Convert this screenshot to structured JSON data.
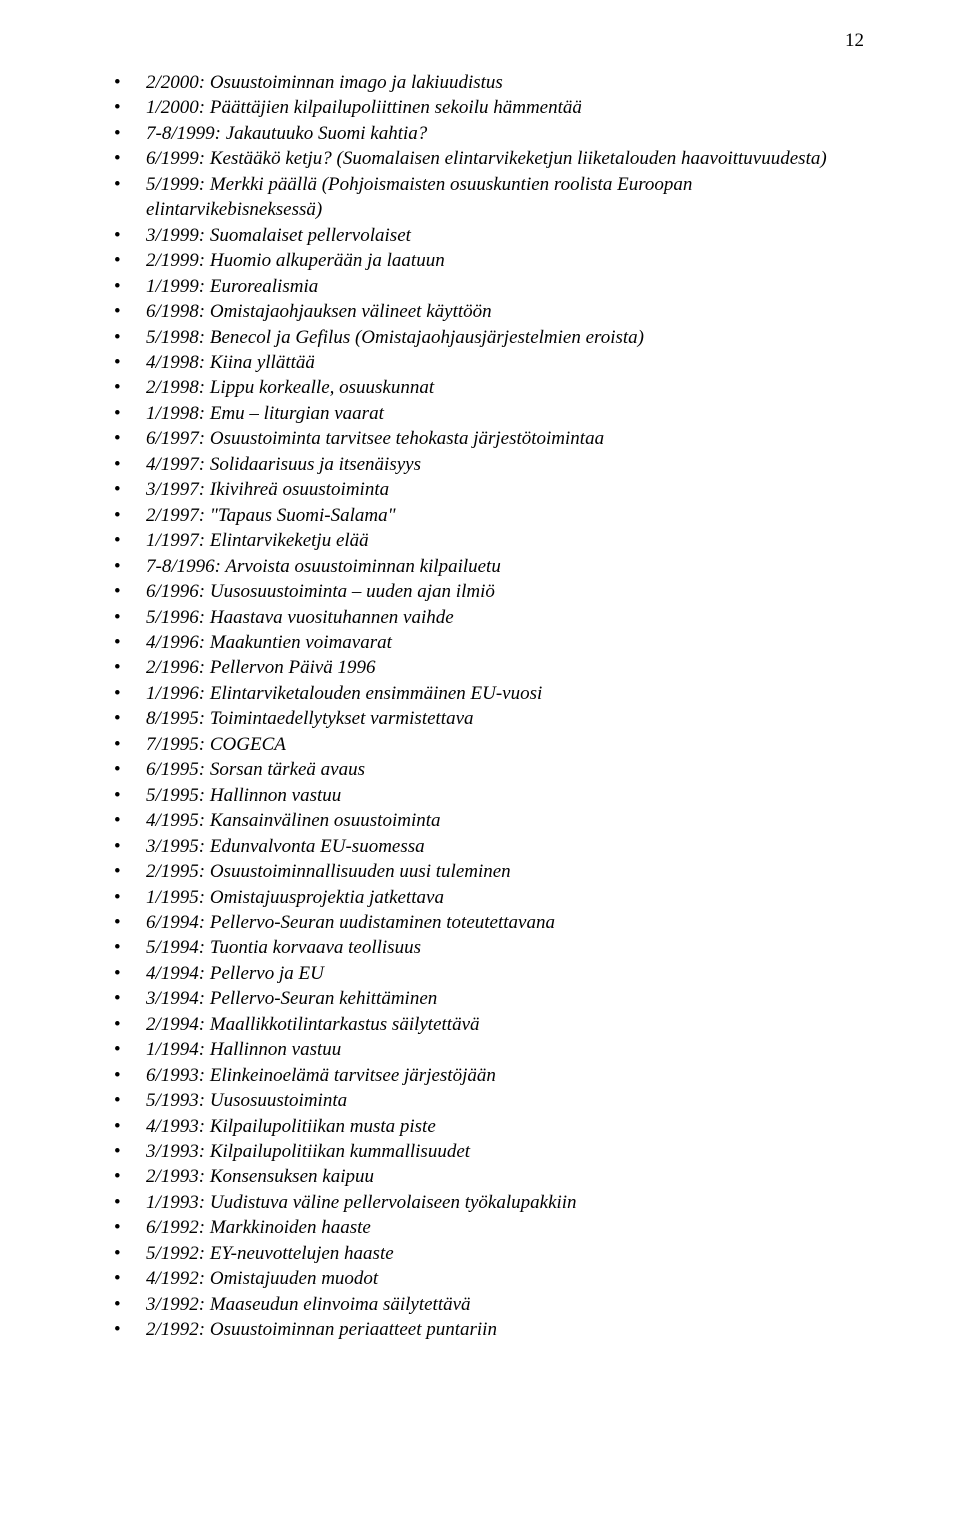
{
  "page_number": "12",
  "entries": [
    {
      "issue": "2/2000",
      "title": "Osuustoiminnan imago ja lakiuudistus"
    },
    {
      "issue": "1/2000",
      "title": "Päättäjien kilpailupoliittinen sekoilu hämmentää"
    },
    {
      "issue": "7-8/1999",
      "title": "Jakautuuko Suomi kahtia?"
    },
    {
      "issue": "6/1999",
      "title": "Kestääkö ketju? (Suomalaisen elintarvikeketjun liiketalouden haavoittuvuudesta)"
    },
    {
      "issue": "5/1999",
      "title": "Merkki päällä (Pohjoismaisten osuuskuntien roolista Euroopan elintarvikebisneksessä)"
    },
    {
      "issue": "3/1999",
      "title": "Suomalaiset pellervolaiset"
    },
    {
      "issue": "2/1999",
      "title": "Huomio alkuperään ja laatuun"
    },
    {
      "issue": "1/1999",
      "title": "Eurorealismia"
    },
    {
      "issue": "6/1998",
      "title": "Omistajaohjauksen välineet käyttöön"
    },
    {
      "issue": "5/1998",
      "title": "Benecol ja Gefilus (Omistajaohjausjärjestelmien eroista)"
    },
    {
      "issue": "4/1998",
      "title": "Kiina yllättää"
    },
    {
      "issue": "2/1998",
      "title": "Lippu korkealle, osuuskunnat"
    },
    {
      "issue": "1/1998",
      "title": "Emu – liturgian vaarat"
    },
    {
      "issue": "6/1997",
      "title": "Osuustoiminta tarvitsee tehokasta järjestötoimintaa"
    },
    {
      "issue": "4/1997",
      "title": "Solidaarisuus ja itsenäisyys"
    },
    {
      "issue": "3/1997",
      "title": "Ikivihreä osuustoiminta"
    },
    {
      "issue": "2/1997",
      "title": "\"Tapaus Suomi-Salama\""
    },
    {
      "issue": "1/1997",
      "title": "Elintarvikeketju elää"
    },
    {
      "issue": "7-8/1996",
      "title": "Arvoista osuustoiminnan kilpailuetu"
    },
    {
      "issue": "6/1996",
      "title": "Uusosuustoiminta – uuden ajan ilmiö"
    },
    {
      "issue": "5/1996",
      "title": "Haastava vuosituhannen vaihde"
    },
    {
      "issue": "4/1996",
      "title": "Maakuntien voimavarat"
    },
    {
      "issue": "2/1996",
      "title": "Pellervon Päivä 1996"
    },
    {
      "issue": "1/1996",
      "title": "Elintarviketalouden ensimmäinen EU-vuosi"
    },
    {
      "issue": "8/1995",
      "title": "Toimintaedellytykset varmistettava"
    },
    {
      "issue": "7/1995",
      "title": "COGECA"
    },
    {
      "issue": "6/1995",
      "title": "Sorsan tärkeä avaus"
    },
    {
      "issue": "5/1995",
      "title": "Hallinnon vastuu"
    },
    {
      "issue": "4/1995",
      "title": "Kansainvälinen osuustoiminta"
    },
    {
      "issue": "3/1995",
      "title": "Edunvalvonta EU-suomessa"
    },
    {
      "issue": "2/1995",
      "title": "Osuustoiminnallisuuden uusi tuleminen"
    },
    {
      "issue": "1/1995",
      "title": "Omistajuusprojektia jatkettava"
    },
    {
      "issue": "6/1994",
      "title": "Pellervo-Seuran uudistaminen toteutettavana"
    },
    {
      "issue": "5/1994",
      "title": "Tuontia korvaava teollisuus"
    },
    {
      "issue": "4/1994",
      "title": "Pellervo ja EU"
    },
    {
      "issue": "3/1994",
      "title": "Pellervo-Seuran kehittäminen"
    },
    {
      "issue": "2/1994",
      "title": "Maallikkotilintarkastus säilytettävä"
    },
    {
      "issue": "1/1994",
      "title": "Hallinnon vastuu"
    },
    {
      "issue": "6/1993",
      "title": "Elinkeinoelämä tarvitsee järjestöjään"
    },
    {
      "issue": "5/1993",
      "title": "Uusosuustoiminta"
    },
    {
      "issue": "4/1993",
      "title": "Kilpailupolitiikan musta piste"
    },
    {
      "issue": "3/1993",
      "title": "Kilpailupolitiikan kummallisuudet"
    },
    {
      "issue": "2/1993",
      "title": "Konsensuksen kaipuu"
    },
    {
      "issue": "1/1993",
      "title": "Uudistuva väline pellervolaiseen työkalupakkiin"
    },
    {
      "issue": "6/1992",
      "title": "Markkinoiden haaste"
    },
    {
      "issue": "5/1992",
      "title": "EY-neuvottelujen haaste"
    },
    {
      "issue": "4/1992",
      "title": "Omistajuuden muodot"
    },
    {
      "issue": "3/1992",
      "title": "Maaseudun elinvoima säilytettävä"
    },
    {
      "issue": "2/1992",
      "title": "Osuustoiminnan periaatteet puntariin"
    }
  ]
}
